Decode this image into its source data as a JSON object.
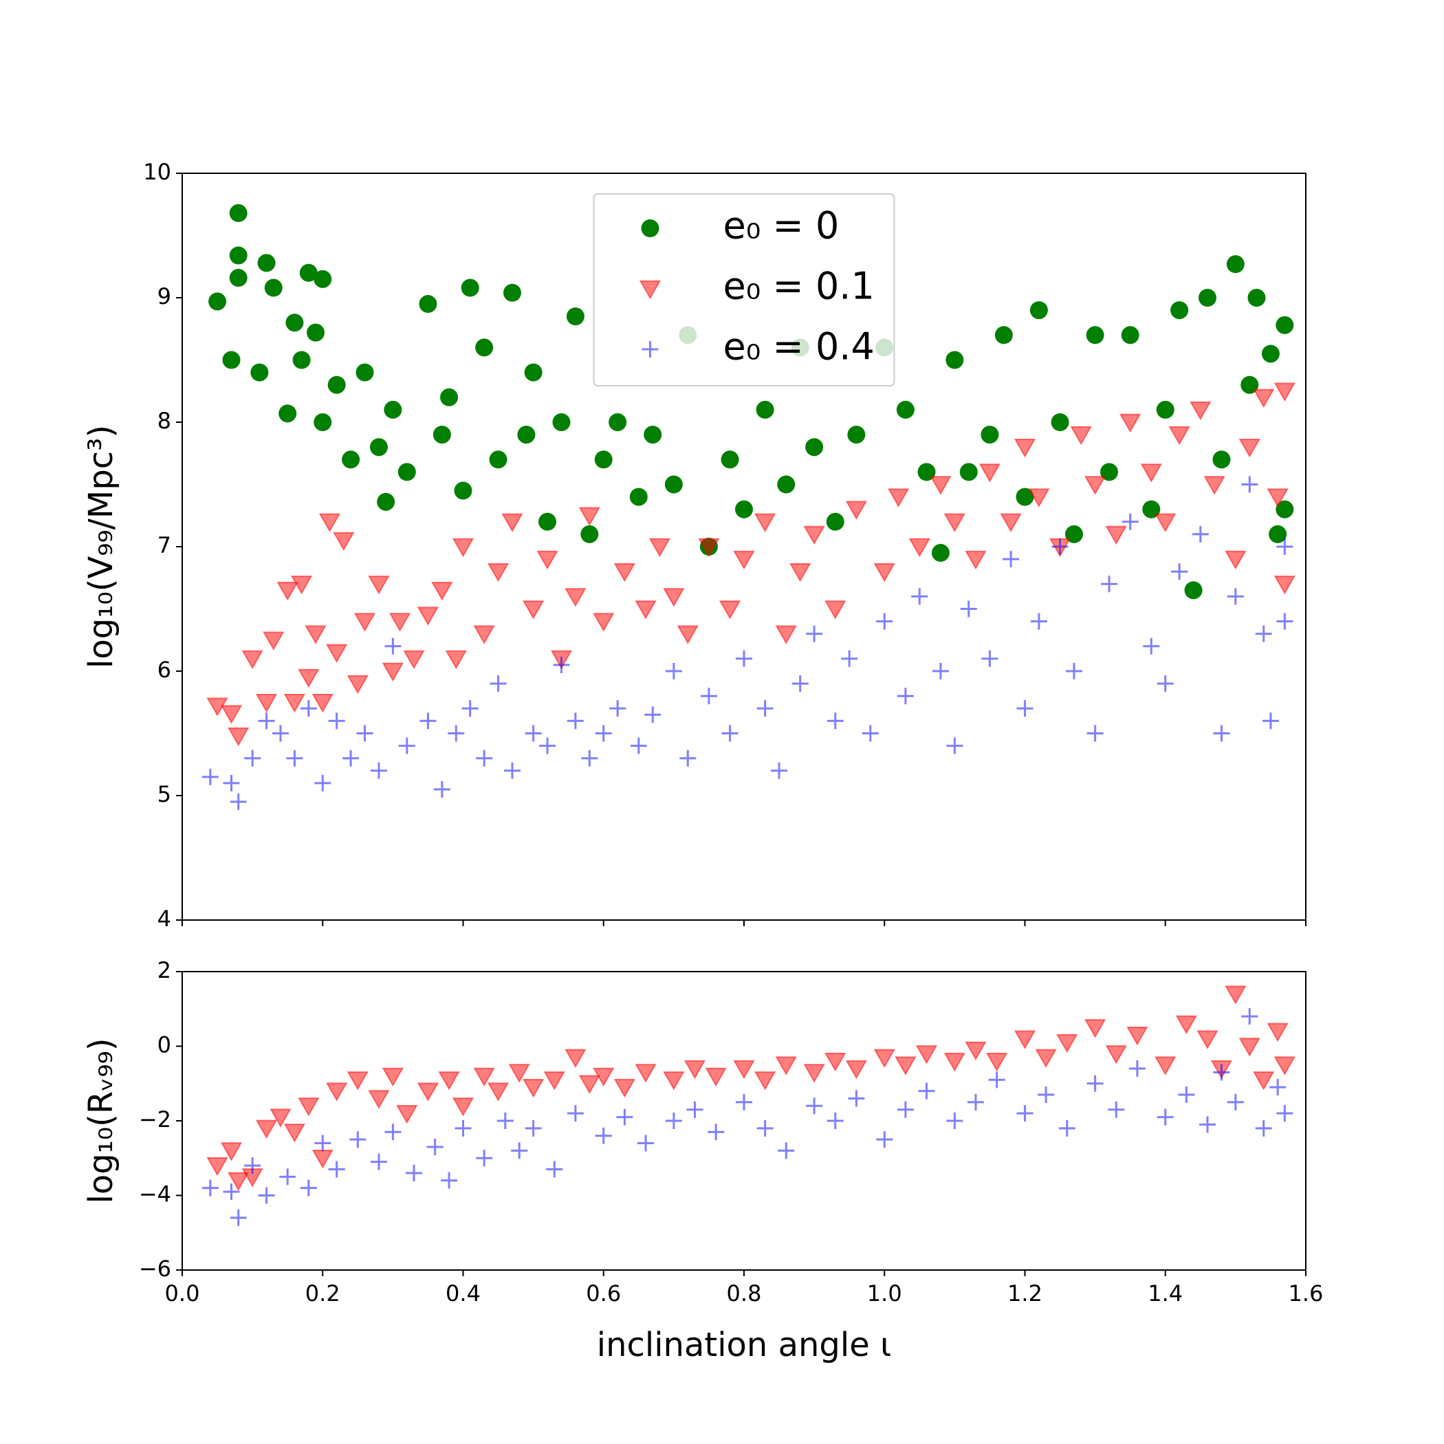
{
  "chart_data": [
    {
      "type": "scatter",
      "ylabel": "log₁₀(V₉₉/Mpc³)",
      "xlim": [
        0,
        1.6
      ],
      "ylim": [
        4,
        10
      ],
      "xticks": [
        0,
        0.2,
        0.4,
        0.6,
        0.8,
        1,
        1.2,
        1.4,
        1.6
      ],
      "xtick_labels": false,
      "yticks": [
        4,
        5,
        6,
        7,
        8,
        9,
        10
      ],
      "legend": "upper center",
      "series": [
        {
          "name": "e₀ = 0",
          "color": "#007f00",
          "marker": "o",
          "alpha": 1,
          "x": [
            0.05,
            0.07,
            0.08,
            0.08,
            0.08,
            0.11,
            0.12,
            0.13,
            0.15,
            0.16,
            0.17,
            0.18,
            0.19,
            0.2,
            0.2,
            0.22,
            0.24,
            0.26,
            0.28,
            0.29,
            0.3,
            0.32,
            0.35,
            0.37,
            0.38,
            0.4,
            0.41,
            0.43,
            0.45,
            0.47,
            0.49,
            0.5,
            0.52,
            0.54,
            0.56,
            0.58,
            0.6,
            0.62,
            0.65,
            0.67,
            0.7,
            0.72,
            0.75,
            0.78,
            0.8,
            0.83,
            0.86,
            0.88,
            0.9,
            0.93,
            0.96,
            1.0,
            1.03,
            1.06,
            1.08,
            1.1,
            1.12,
            1.15,
            1.17,
            1.2,
            1.22,
            1.25,
            1.27,
            1.3,
            1.32,
            1.35,
            1.38,
            1.4,
            1.42,
            1.44,
            1.46,
            1.48,
            1.5,
            1.52,
            1.53,
            1.55,
            1.56,
            1.57,
            1.57
          ],
          "values": [
            8.97,
            8.5,
            9.68,
            9.34,
            9.16,
            8.4,
            9.28,
            9.08,
            8.07,
            8.8,
            8.5,
            9.2,
            8.72,
            9.15,
            8.0,
            8.3,
            7.7,
            8.4,
            7.8,
            7.36,
            8.1,
            7.6,
            8.95,
            7.9,
            8.2,
            7.45,
            9.08,
            8.6,
            7.7,
            9.04,
            7.9,
            8.4,
            7.2,
            8.0,
            8.85,
            7.1,
            7.7,
            8.0,
            7.4,
            7.9,
            7.5,
            8.7,
            7.0,
            7.7,
            7.3,
            8.1,
            7.5,
            8.6,
            7.8,
            7.2,
            7.9,
            8.6,
            8.1,
            7.6,
            6.95,
            8.5,
            7.6,
            7.9,
            8.7,
            7.4,
            8.9,
            8.0,
            7.1,
            8.7,
            7.6,
            8.7,
            7.3,
            8.1,
            8.9,
            6.65,
            9.0,
            7.7,
            9.27,
            8.3,
            9.0,
            8.55,
            7.1,
            8.78,
            7.3
          ]
        },
        {
          "name": "e₀ = 0.1",
          "color": "#ff0000",
          "marker": "v",
          "alpha": 0.5,
          "x": [
            0.05,
            0.07,
            0.08,
            0.1,
            0.12,
            0.13,
            0.15,
            0.16,
            0.17,
            0.18,
            0.19,
            0.2,
            0.21,
            0.22,
            0.23,
            0.25,
            0.26,
            0.28,
            0.3,
            0.31,
            0.33,
            0.35,
            0.37,
            0.39,
            0.4,
            0.43,
            0.45,
            0.47,
            0.5,
            0.52,
            0.54,
            0.56,
            0.58,
            0.6,
            0.63,
            0.66,
            0.68,
            0.7,
            0.72,
            0.75,
            0.78,
            0.8,
            0.83,
            0.86,
            0.88,
            0.9,
            0.93,
            0.96,
            1.0,
            1.02,
            1.05,
            1.08,
            1.1,
            1.13,
            1.15,
            1.18,
            1.2,
            1.22,
            1.25,
            1.28,
            1.3,
            1.33,
            1.35,
            1.38,
            1.4,
            1.42,
            1.45,
            1.47,
            1.5,
            1.52,
            1.54,
            1.56,
            1.57,
            1.57
          ],
          "values": [
            5.72,
            5.66,
            5.48,
            6.1,
            5.75,
            6.25,
            6.65,
            5.75,
            6.7,
            5.95,
            6.3,
            5.75,
            7.2,
            6.15,
            7.05,
            5.9,
            6.4,
            6.7,
            6.0,
            6.4,
            6.1,
            6.45,
            6.65,
            6.1,
            7.0,
            6.3,
            6.8,
            7.2,
            6.5,
            6.9,
            6.1,
            6.6,
            7.25,
            6.4,
            6.8,
            6.5,
            7.0,
            6.6,
            6.3,
            7.0,
            6.5,
            6.9,
            7.2,
            6.3,
            6.8,
            7.1,
            6.5,
            7.3,
            6.8,
            7.4,
            7.0,
            7.5,
            7.2,
            6.9,
            7.6,
            7.2,
            7.8,
            7.4,
            7.0,
            7.9,
            7.5,
            7.1,
            8.0,
            7.6,
            7.2,
            7.9,
            8.1,
            7.5,
            6.9,
            7.8,
            8.2,
            7.4,
            8.25,
            6.7
          ]
        },
        {
          "name": "e₀ = 0.4",
          "color": "#0000ff",
          "marker": "+",
          "alpha": 0.5,
          "x": [
            0.04,
            0.07,
            0.08,
            0.1,
            0.12,
            0.14,
            0.16,
            0.18,
            0.2,
            0.22,
            0.24,
            0.26,
            0.28,
            0.3,
            0.32,
            0.35,
            0.37,
            0.39,
            0.41,
            0.43,
            0.45,
            0.47,
            0.5,
            0.52,
            0.54,
            0.56,
            0.58,
            0.6,
            0.62,
            0.65,
            0.67,
            0.7,
            0.72,
            0.75,
            0.78,
            0.8,
            0.83,
            0.85,
            0.88,
            0.9,
            0.93,
            0.95,
            0.98,
            1.0,
            1.03,
            1.05,
            1.08,
            1.1,
            1.12,
            1.15,
            1.18,
            1.2,
            1.22,
            1.25,
            1.27,
            1.3,
            1.32,
            1.35,
            1.38,
            1.4,
            1.42,
            1.45,
            1.48,
            1.5,
            1.52,
            1.54,
            1.55,
            1.57,
            1.57
          ],
          "values": [
            5.15,
            5.1,
            4.95,
            5.3,
            5.6,
            5.5,
            5.3,
            5.7,
            5.1,
            5.6,
            5.3,
            5.5,
            5.2,
            6.2,
            5.4,
            5.6,
            5.05,
            5.5,
            5.7,
            5.3,
            5.9,
            5.2,
            5.5,
            5.4,
            6.05,
            5.6,
            5.3,
            5.5,
            5.7,
            5.4,
            5.65,
            6.0,
            5.3,
            5.8,
            5.5,
            6.1,
            5.7,
            5.2,
            5.9,
            6.3,
            5.6,
            6.1,
            5.5,
            6.4,
            5.8,
            6.6,
            6.0,
            5.4,
            6.5,
            6.1,
            6.9,
            5.7,
            6.4,
            7.0,
            6.0,
            5.5,
            6.7,
            7.2,
            6.2,
            5.9,
            6.8,
            7.1,
            5.5,
            6.6,
            7.5,
            6.3,
            5.6,
            7.0,
            6.4
          ]
        }
      ]
    },
    {
      "type": "scatter",
      "ylabel": "log₁₀(Rᵥ₉₉)",
      "xlabel": "inclination angle ι",
      "xlim": [
        0,
        1.6
      ],
      "ylim": [
        -6,
        2
      ],
      "xticks": [
        {
          "value": 0,
          "label": "0.0"
        },
        0.2,
        0.4,
        0.6,
        0.8,
        {
          "value": 1,
          "label": "1.0"
        },
        1.2,
        1.4,
        1.6
      ],
      "xtick_labels": true,
      "yticks": [
        {
          "value": -6,
          "label": "−6"
        },
        {
          "value": -4,
          "label": "−4"
        },
        {
          "value": -2,
          "label": "−2"
        },
        0,
        2
      ],
      "series": [
        {
          "color": "#ff0000",
          "marker": "v",
          "alpha": 0.5,
          "x": [
            0.05,
            0.07,
            0.08,
            0.1,
            0.12,
            0.14,
            0.16,
            0.18,
            0.2,
            0.22,
            0.25,
            0.28,
            0.3,
            0.32,
            0.35,
            0.38,
            0.4,
            0.43,
            0.45,
            0.48,
            0.5,
            0.53,
            0.56,
            0.58,
            0.6,
            0.63,
            0.66,
            0.7,
            0.73,
            0.76,
            0.8,
            0.83,
            0.86,
            0.9,
            0.93,
            0.96,
            1.0,
            1.03,
            1.06,
            1.1,
            1.13,
            1.16,
            1.2,
            1.23,
            1.26,
            1.3,
            1.33,
            1.36,
            1.4,
            1.43,
            1.46,
            1.48,
            1.5,
            1.52,
            1.54,
            1.56,
            1.57
          ],
          "values": [
            -3.2,
            -2.8,
            -3.6,
            -3.5,
            -2.2,
            -1.9,
            -2.3,
            -1.6,
            -3.0,
            -1.2,
            -0.9,
            -1.4,
            -0.8,
            -1.8,
            -1.2,
            -0.9,
            -1.6,
            -0.8,
            -1.2,
            -0.7,
            -1.1,
            -0.9,
            -0.3,
            -1.0,
            -0.8,
            -1.1,
            -0.7,
            -0.9,
            -0.6,
            -0.8,
            -0.6,
            -0.9,
            -0.5,
            -0.7,
            -0.4,
            -0.6,
            -0.3,
            -0.5,
            -0.2,
            -0.4,
            -0.1,
            -0.4,
            0.2,
            -0.3,
            0.1,
            0.5,
            -0.2,
            0.3,
            -0.5,
            0.6,
            0.2,
            -0.6,
            1.4,
            0.0,
            -0.9,
            0.4,
            -0.5
          ]
        },
        {
          "color": "#0000ff",
          "marker": "+",
          "alpha": 0.5,
          "x": [
            0.04,
            0.07,
            0.08,
            0.1,
            0.12,
            0.15,
            0.18,
            0.2,
            0.22,
            0.25,
            0.28,
            0.3,
            0.33,
            0.36,
            0.38,
            0.4,
            0.43,
            0.46,
            0.48,
            0.5,
            0.53,
            0.56,
            0.6,
            0.63,
            0.66,
            0.7,
            0.73,
            0.76,
            0.8,
            0.83,
            0.86,
            0.9,
            0.93,
            0.96,
            1.0,
            1.03,
            1.06,
            1.1,
            1.13,
            1.16,
            1.2,
            1.23,
            1.26,
            1.3,
            1.33,
            1.36,
            1.4,
            1.43,
            1.46,
            1.48,
            1.5,
            1.52,
            1.54,
            1.56,
            1.57
          ],
          "values": [
            -3.8,
            -3.9,
            -4.6,
            -3.2,
            -4.0,
            -3.5,
            -3.8,
            -2.6,
            -3.3,
            -2.5,
            -3.1,
            -2.3,
            -3.4,
            -2.7,
            -3.6,
            -2.2,
            -3.0,
            -2.0,
            -2.8,
            -2.2,
            -3.3,
            -1.8,
            -2.4,
            -1.9,
            -2.6,
            -2.0,
            -1.7,
            -2.3,
            -1.5,
            -2.2,
            -2.8,
            -1.6,
            -2.0,
            -1.4,
            -2.5,
            -1.7,
            -1.2,
            -2.0,
            -1.5,
            -0.9,
            -1.8,
            -1.3,
            -2.2,
            -1.0,
            -1.7,
            -0.6,
            -1.9,
            -1.3,
            -2.1,
            -0.7,
            -1.5,
            0.8,
            -2.2,
            -1.1,
            -1.8
          ]
        }
      ]
    }
  ]
}
